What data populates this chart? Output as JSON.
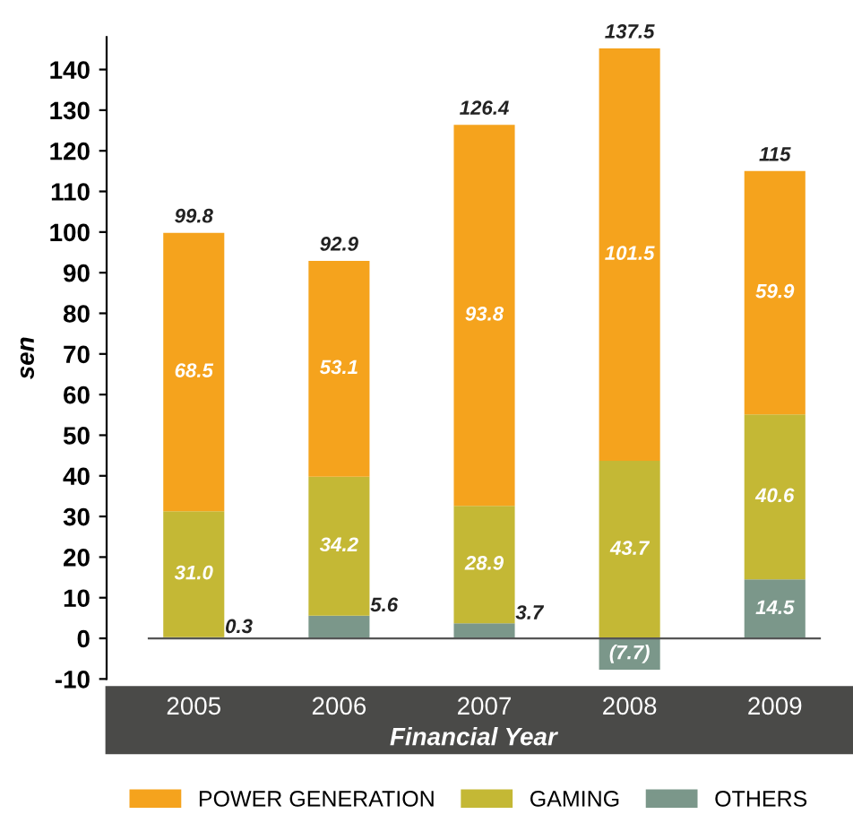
{
  "chart_data": {
    "type": "bar",
    "stacked": true,
    "xlabel": "Financial Year",
    "ylabel": "sen",
    "categories": [
      "2005",
      "2006",
      "2007",
      "2008",
      "2009"
    ],
    "series": [
      {
        "name": "OTHERS",
        "color": "#7b978a",
        "values": [
          0.3,
          5.6,
          3.7,
          -7.7,
          14.5
        ],
        "value_labels": [
          "0.3",
          "5.6",
          "3.7",
          "(7.7)",
          "14.5"
        ]
      },
      {
        "name": "GAMING",
        "color": "#c4b835",
        "values": [
          31.0,
          34.2,
          28.9,
          43.7,
          40.6
        ],
        "value_labels": [
          "31.0",
          "34.2",
          "28.9",
          "43.7",
          "40.6"
        ]
      },
      {
        "name": "POWER GENERATION",
        "color": "#f5a31d",
        "values": [
          68.5,
          53.1,
          93.8,
          101.5,
          59.9
        ],
        "value_labels": [
          "68.5",
          "53.1",
          "93.8",
          "101.5",
          "59.9"
        ]
      }
    ],
    "totals": [
      "99.8",
      "92.9",
      "126.4",
      "137.5",
      "115"
    ],
    "ylim": [
      -10,
      148
    ],
    "yticks": [
      -10,
      0,
      10,
      20,
      30,
      40,
      50,
      60,
      70,
      80,
      90,
      100,
      110,
      120,
      130,
      140
    ],
    "grid": false,
    "legend": "bottom"
  }
}
